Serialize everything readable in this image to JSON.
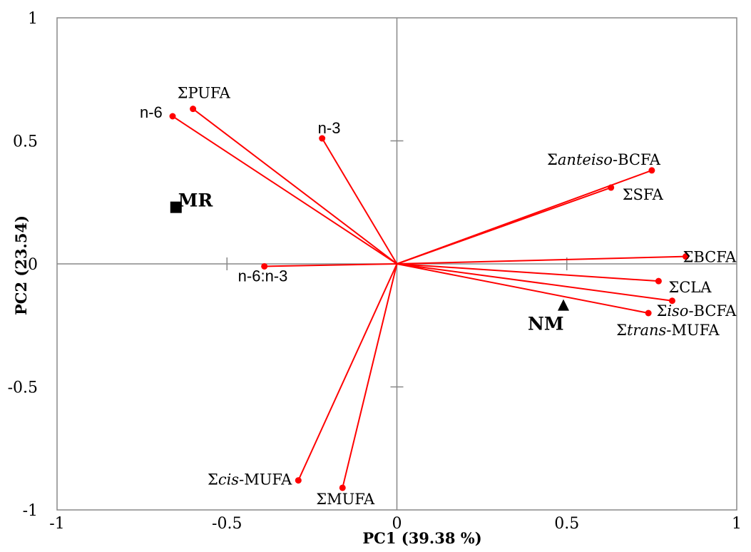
{
  "chart_data": {
    "type": "scatter",
    "subtype": "pca-biplot",
    "xlabel": "PC1 (39.38 %)",
    "ylabel": "PC2 (23.54)",
    "xlim": [
      -1,
      1
    ],
    "ylim": [
      -1,
      1
    ],
    "x_ticks": [
      {
        "value": -1,
        "label": "-1"
      },
      {
        "value": -0.5,
        "label": "-0.5"
      },
      {
        "value": 0,
        "label": "0"
      },
      {
        "value": 0.5,
        "label": "0.5"
      },
      {
        "value": 1,
        "label": "1"
      }
    ],
    "y_ticks": [
      {
        "value": 1,
        "label": "1"
      },
      {
        "value": 0.5,
        "label": "0.5"
      },
      {
        "value": 0,
        "label": "0"
      },
      {
        "value": -0.5,
        "label": "-0.5"
      },
      {
        "value": -1,
        "label": "-1"
      }
    ],
    "grid": false,
    "loading_color": "#ff0000",
    "loadings": [
      {
        "label": "n-6",
        "font": "sans",
        "x": -0.66,
        "y": 0.6
      },
      {
        "label": "ΣPUFA",
        "font": "serif",
        "x": -0.6,
        "y": 0.63
      },
      {
        "label": "n-3",
        "font": "sans",
        "x": -0.22,
        "y": 0.51
      },
      {
        "label": "ΣantEiso",
        "display": "Σanteiso-BCFA",
        "font": "serif",
        "italic_part": "anteiso",
        "x": 0.75,
        "y": 0.38
      },
      {
        "label": "ΣSFA",
        "font": "serif",
        "x": 0.63,
        "y": 0.31
      },
      {
        "label": "ΣBCFA",
        "font": "serif",
        "x": 0.85,
        "y": 0.03
      },
      {
        "label": "n-6:n-3",
        "font": "sans",
        "x": -0.39,
        "y": -0.01
      },
      {
        "label": "ΣCLA",
        "font": "serif",
        "x": 0.77,
        "y": -0.07
      },
      {
        "label": "Σiso-BCFA",
        "font": "serif",
        "italic_part": "iso",
        "x": 0.81,
        "y": -0.15
      },
      {
        "label": "Σtrans-MUFA",
        "font": "serif",
        "italic_part": "trans",
        "x": 0.74,
        "y": -0.2
      },
      {
        "label": "Σcis-MUFA",
        "font": "serif",
        "italic_part": "cis",
        "x": -0.29,
        "y": -0.88
      },
      {
        "label": "ΣMUFA",
        "font": "serif",
        "x": -0.16,
        "y": -0.91
      }
    ],
    "groups": [
      {
        "label": "MR",
        "marker": "square",
        "x": -0.65,
        "y": 0.23
      },
      {
        "label": "NM",
        "marker": "triangle",
        "x": 0.49,
        "y": -0.17
      }
    ]
  }
}
